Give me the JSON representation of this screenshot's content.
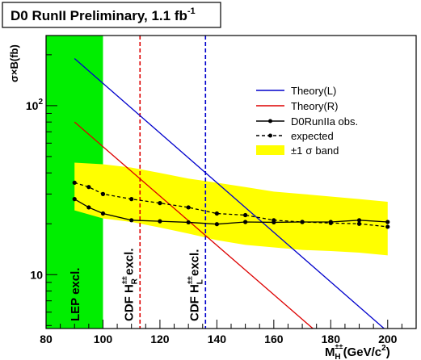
{
  "chart_data": {
    "type": "line",
    "title": "D0 RunII Preliminary, 1.1 fb",
    "title_superscript": "-1",
    "ylabel": "σ×B(fb)",
    "xlabel_main": "M",
    "xlabel_sub": "H",
    "xlabel_sup": "±±",
    "xlabel_units": "(GeV/c",
    "xlabel_units_sup": "2",
    "xlabel_close": ")",
    "xlim": [
      80,
      210
    ],
    "ylim": [
      4.8,
      260
    ],
    "yscale": "log",
    "x_ticks": [
      {
        "value": 80,
        "label": "80"
      },
      {
        "value": 100,
        "label": "100"
      },
      {
        "value": 120,
        "label": "120"
      },
      {
        "value": 140,
        "label": "140"
      },
      {
        "value": 160,
        "label": "160"
      },
      {
        "value": 180,
        "label": "180"
      },
      {
        "value": 200,
        "label": "200"
      }
    ],
    "y_ticks": [
      {
        "value": 10,
        "label": "10"
      },
      {
        "value": 100,
        "label": "10",
        "sup": "2"
      }
    ],
    "series": [
      {
        "name": "Theory(L)",
        "color": "#0000cc",
        "style": "solid",
        "x": [
          90,
          200
        ],
        "y": [
          190,
          4.6
        ]
      },
      {
        "name": "Theory(R)",
        "color": "#dd0000",
        "style": "solid",
        "x": [
          90,
          175
        ],
        "y": [
          80,
          4.6
        ]
      },
      {
        "name": "D0RunIIa obs.",
        "color": "#000000",
        "style": "solid-markers",
        "x": [
          90,
          95,
          100,
          110,
          120,
          130,
          140,
          150,
          160,
          170,
          180,
          190,
          200
        ],
        "y": [
          28,
          25,
          23,
          21,
          20.7,
          20.4,
          19.9,
          20.5,
          20.4,
          20.5,
          20.5,
          21,
          20.5
        ]
      },
      {
        "name": "expected",
        "color": "#000000",
        "style": "dashed-markers",
        "x": [
          90,
          95,
          100,
          110,
          120,
          130,
          140,
          150,
          160,
          170,
          180,
          190,
          200
        ],
        "y": [
          35,
          33,
          30,
          28,
          26.5,
          25,
          23,
          22.5,
          21,
          20.5,
          20.2,
          20,
          19.2
        ]
      }
    ],
    "band": {
      "name": "±1 σ band",
      "legend_sigma": "σ",
      "legend_label": "band",
      "legend_pm": "±1",
      "color": "#ffff00",
      "x": [
        90,
        100,
        110,
        120,
        130,
        140,
        150,
        160,
        170,
        180,
        190,
        200
      ],
      "upper": [
        46,
        45,
        43,
        40,
        37,
        35,
        33,
        31,
        30,
        29,
        28,
        27
      ],
      "lower": [
        24,
        21.5,
        20.5,
        19,
        17.5,
        16,
        15,
        14.5,
        14,
        13.8,
        13.5,
        13
      ]
    },
    "regions": [
      {
        "label": "LEP excl.",
        "type": "fill",
        "x_range": [
          80,
          100
        ],
        "color": "#00ee00"
      }
    ],
    "vlines": [
      {
        "label_main": "CDF H",
        "label_sub": "R",
        "label_sup": "±±",
        "label_tail": " excl.",
        "x": 113,
        "color": "#dd0000"
      },
      {
        "label_main": "CDF H",
        "label_sub": "L",
        "label_sup": "±±",
        "label_tail": " excl.",
        "x": 136,
        "color": "#0000cc"
      }
    ],
    "legend_position": "top-right"
  }
}
